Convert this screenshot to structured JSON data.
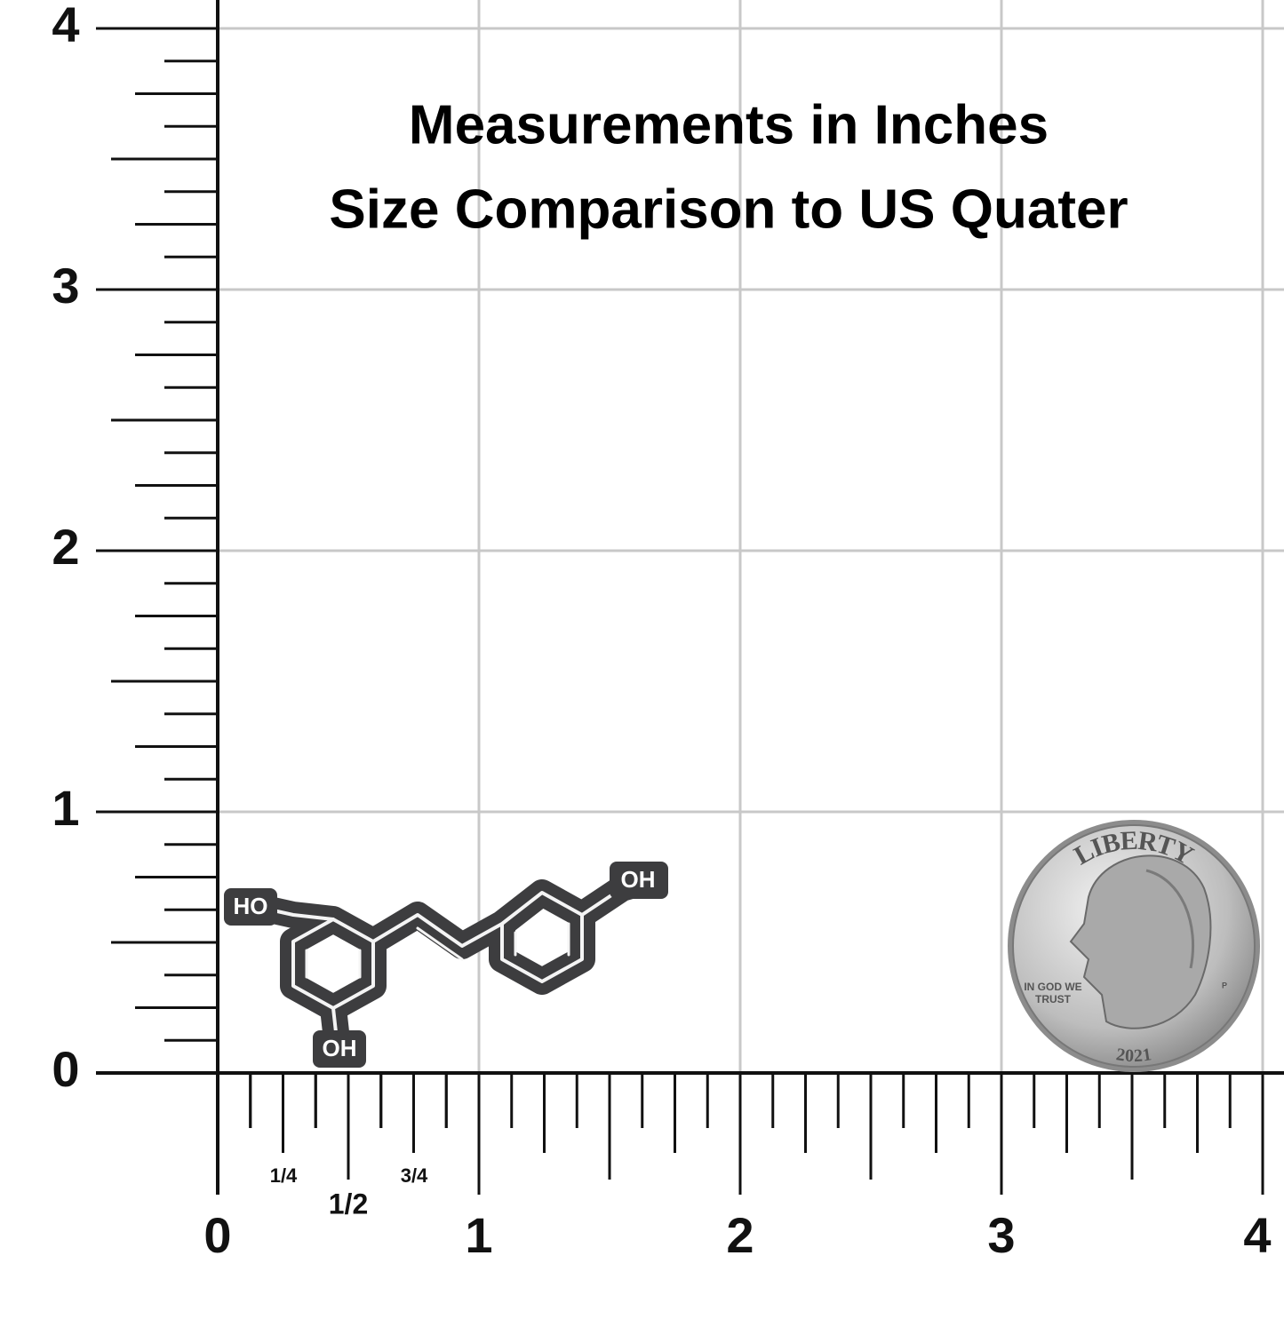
{
  "title": {
    "line1": "Measurements in Inches",
    "line2": "Size Comparison to US Quater"
  },
  "ruler": {
    "vertical_labels": [
      0,
      1,
      2,
      3,
      4
    ],
    "horizontal_labels": [
      0,
      1,
      2,
      3,
      4
    ],
    "fraction_labels": [
      "1/4",
      "1/2",
      "3/4"
    ]
  },
  "molecule": {
    "labels": [
      "HO",
      "OH",
      "OH"
    ]
  },
  "coin": {
    "top": "LIBERTY",
    "motto_line1": "IN GOD WE",
    "motto_line2": "TRUST",
    "year": "2021",
    "mint": "P"
  }
}
